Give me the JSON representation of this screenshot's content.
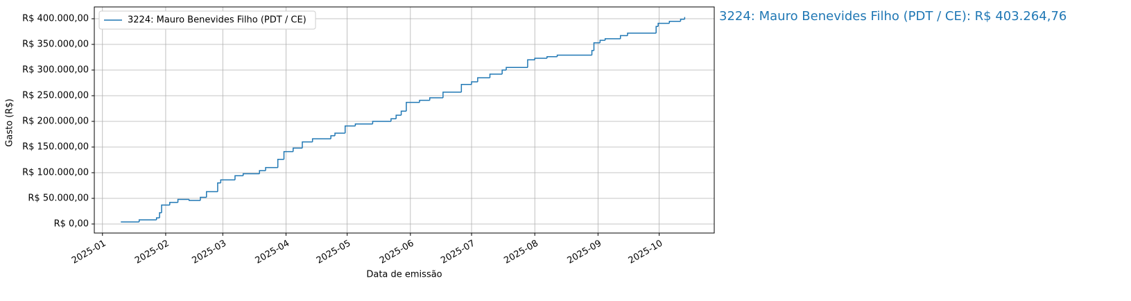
{
  "chart_data": {
    "type": "step",
    "xlabel": "Data de emissão",
    "ylabel": "Gasto (R$)",
    "annotation": "3224: Mauro Benevides Filho (PDT / CE): R$ 403.264,76",
    "grid": true,
    "legend": "upper left",
    "xlim": [
      -4,
      300
    ],
    "xticks": [
      {
        "value": 0,
        "label": "2025-01"
      },
      {
        "value": 31,
        "label": "2025-02"
      },
      {
        "value": 59,
        "label": "2025-03"
      },
      {
        "value": 90,
        "label": "2025-04"
      },
      {
        "value": 120,
        "label": "2025-05"
      },
      {
        "value": 151,
        "label": "2025-06"
      },
      {
        "value": 181,
        "label": "2025-07"
      },
      {
        "value": 212,
        "label": "2025-08"
      },
      {
        "value": 243,
        "label": "2025-09"
      },
      {
        "value": 273,
        "label": "2025-10"
      }
    ],
    "ylim": [
      -17600,
      423000
    ],
    "yticks": [
      {
        "value": 0,
        "label": "R$ 0,00"
      },
      {
        "value": 50000,
        "label": "R$ 50.000,00"
      },
      {
        "value": 100000,
        "label": "R$ 100.000,00"
      },
      {
        "value": 150000,
        "label": "R$ 150.000,00"
      },
      {
        "value": 200000,
        "label": "R$ 200.000,00"
      },
      {
        "value": 250000,
        "label": "R$ 250.000,00"
      },
      {
        "value": 300000,
        "label": "R$ 300.000,00"
      },
      {
        "value": 350000,
        "label": "R$ 350.000,00"
      },
      {
        "value": 400000,
        "label": "R$ 400.000,00"
      }
    ],
    "x": [
      9,
      18,
      26.5,
      28,
      29,
      33,
      37,
      42.5,
      48,
      51,
      56.5,
      58,
      65,
      69,
      77,
      80,
      86,
      89,
      93.5,
      98,
      103,
      112,
      114,
      119,
      124,
      132.5,
      141.5,
      144,
      146.5,
      149,
      155.5,
      160.5,
      167,
      176,
      181,
      184,
      190,
      196,
      198,
      208.5,
      212,
      218,
      223,
      240,
      241,
      244,
      246.5,
      254,
      257.5,
      271.5,
      272.5,
      278,
      283.5,
      285.5
    ],
    "series": [
      {
        "name": "3224: Mauro Benevides Filho (PDT / CE)",
        "color": "#1f77b4",
        "values": [
          4000,
          8000,
          12000,
          22000,
          37000,
          42000,
          48000,
          46000,
          52000,
          63000,
          80000,
          86000,
          94000,
          98000,
          104000,
          110000,
          126000,
          141000,
          148000,
          160000,
          166000,
          172000,
          177000,
          191000,
          195000,
          200000,
          205000,
          212000,
          220000,
          237000,
          241000,
          246000,
          257000,
          272000,
          277000,
          285000,
          292000,
          300000,
          305000,
          320000,
          323000,
          326000,
          329000,
          338000,
          353000,
          358000,
          361000,
          367000,
          372000,
          385000,
          391000,
          395000,
          399000,
          403264.76
        ]
      }
    ]
  }
}
